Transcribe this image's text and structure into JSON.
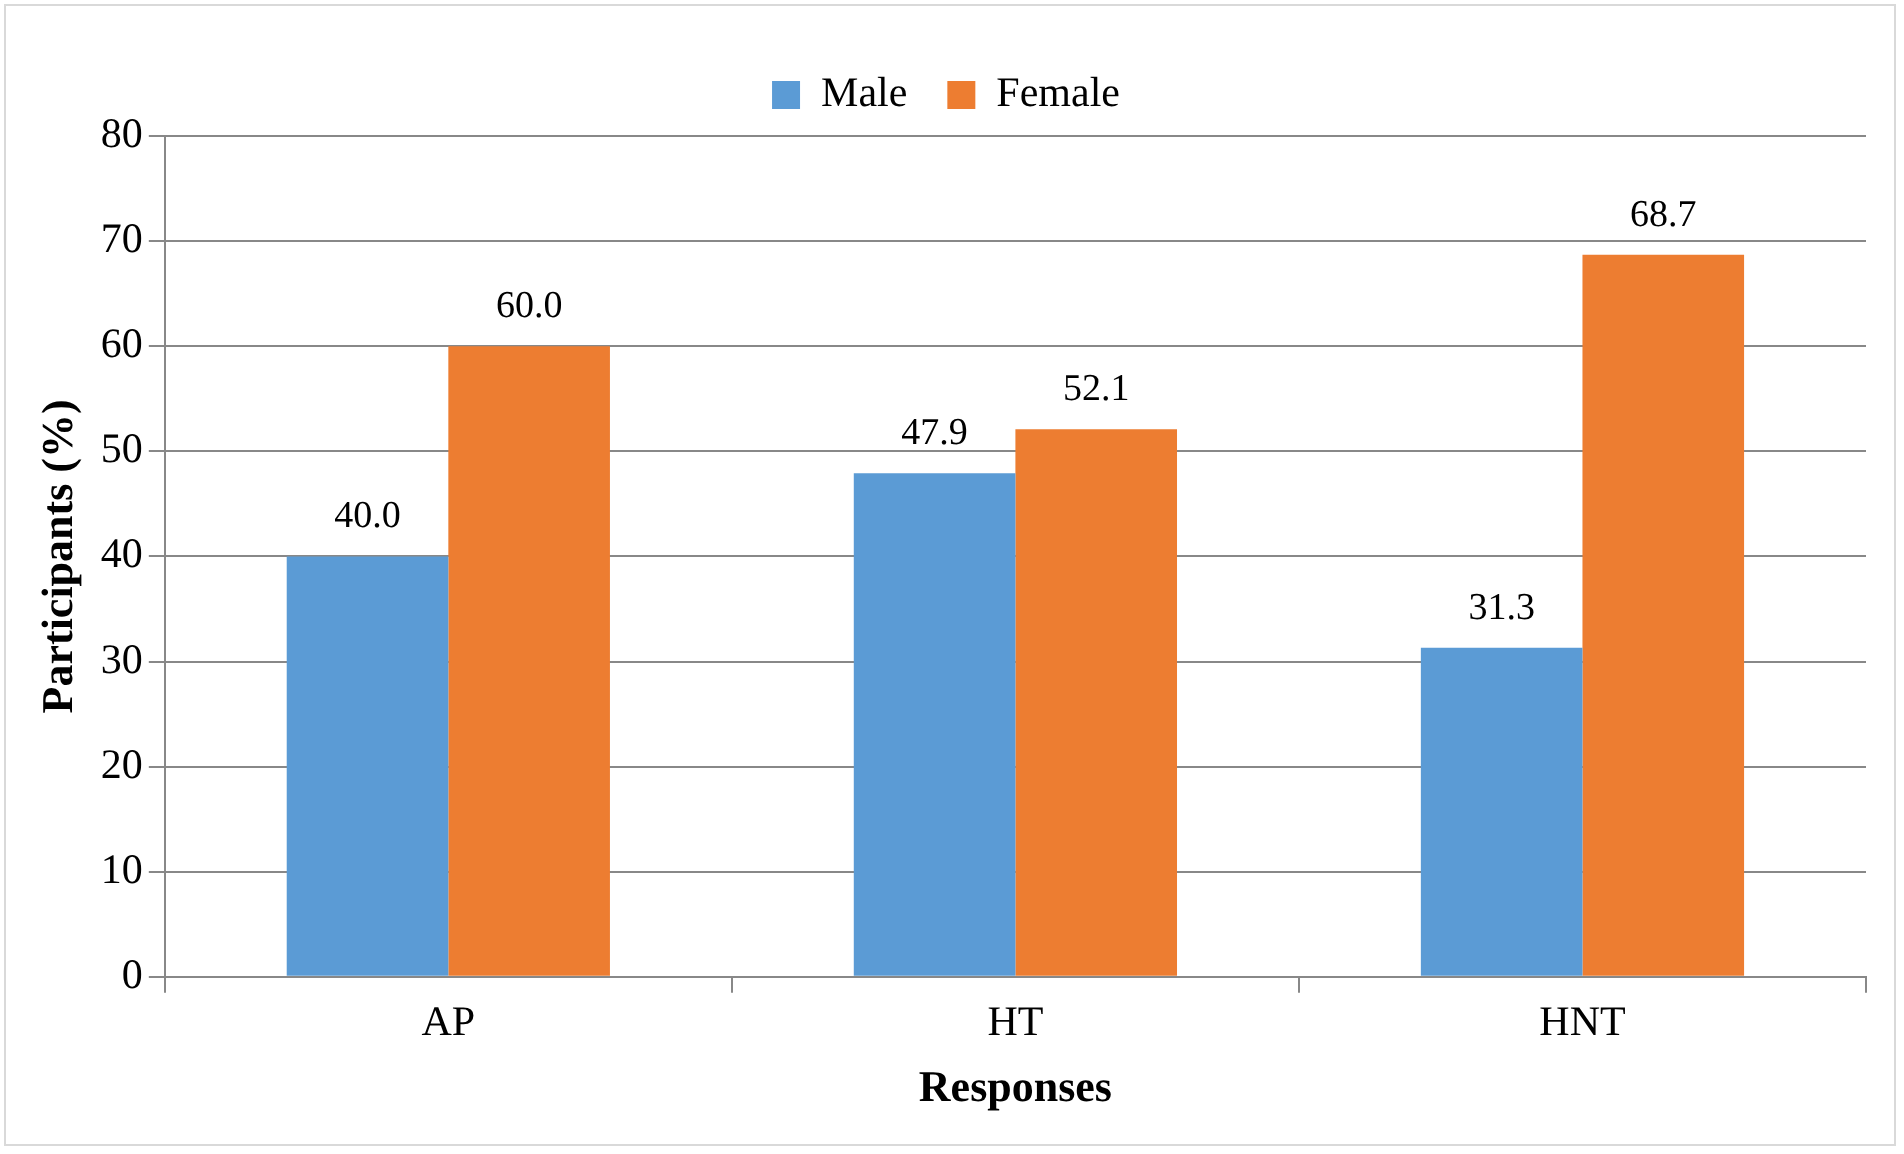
{
  "chart_data": {
    "type": "bar",
    "xlabel": "Responses",
    "ylabel": "Participants (%)",
    "categories": [
      "AP",
      "HT",
      "HNT"
    ],
    "series": [
      {
        "name": "Male",
        "color": "#5b9bd5",
        "values": [
          40.0,
          47.9,
          31.3
        ],
        "value_labels": [
          "40.0",
          "47.9",
          "31.3"
        ]
      },
      {
        "name": "Female",
        "color": "#ed7d31",
        "values": [
          60.0,
          52.1,
          68.7
        ],
        "value_labels": [
          "60.0",
          "52.1",
          "68.7"
        ]
      }
    ],
    "ylim": [
      0,
      80
    ],
    "yticks": [
      0,
      10,
      20,
      30,
      40,
      50,
      60,
      70,
      80
    ],
    "grid": "y",
    "legend": "top"
  }
}
